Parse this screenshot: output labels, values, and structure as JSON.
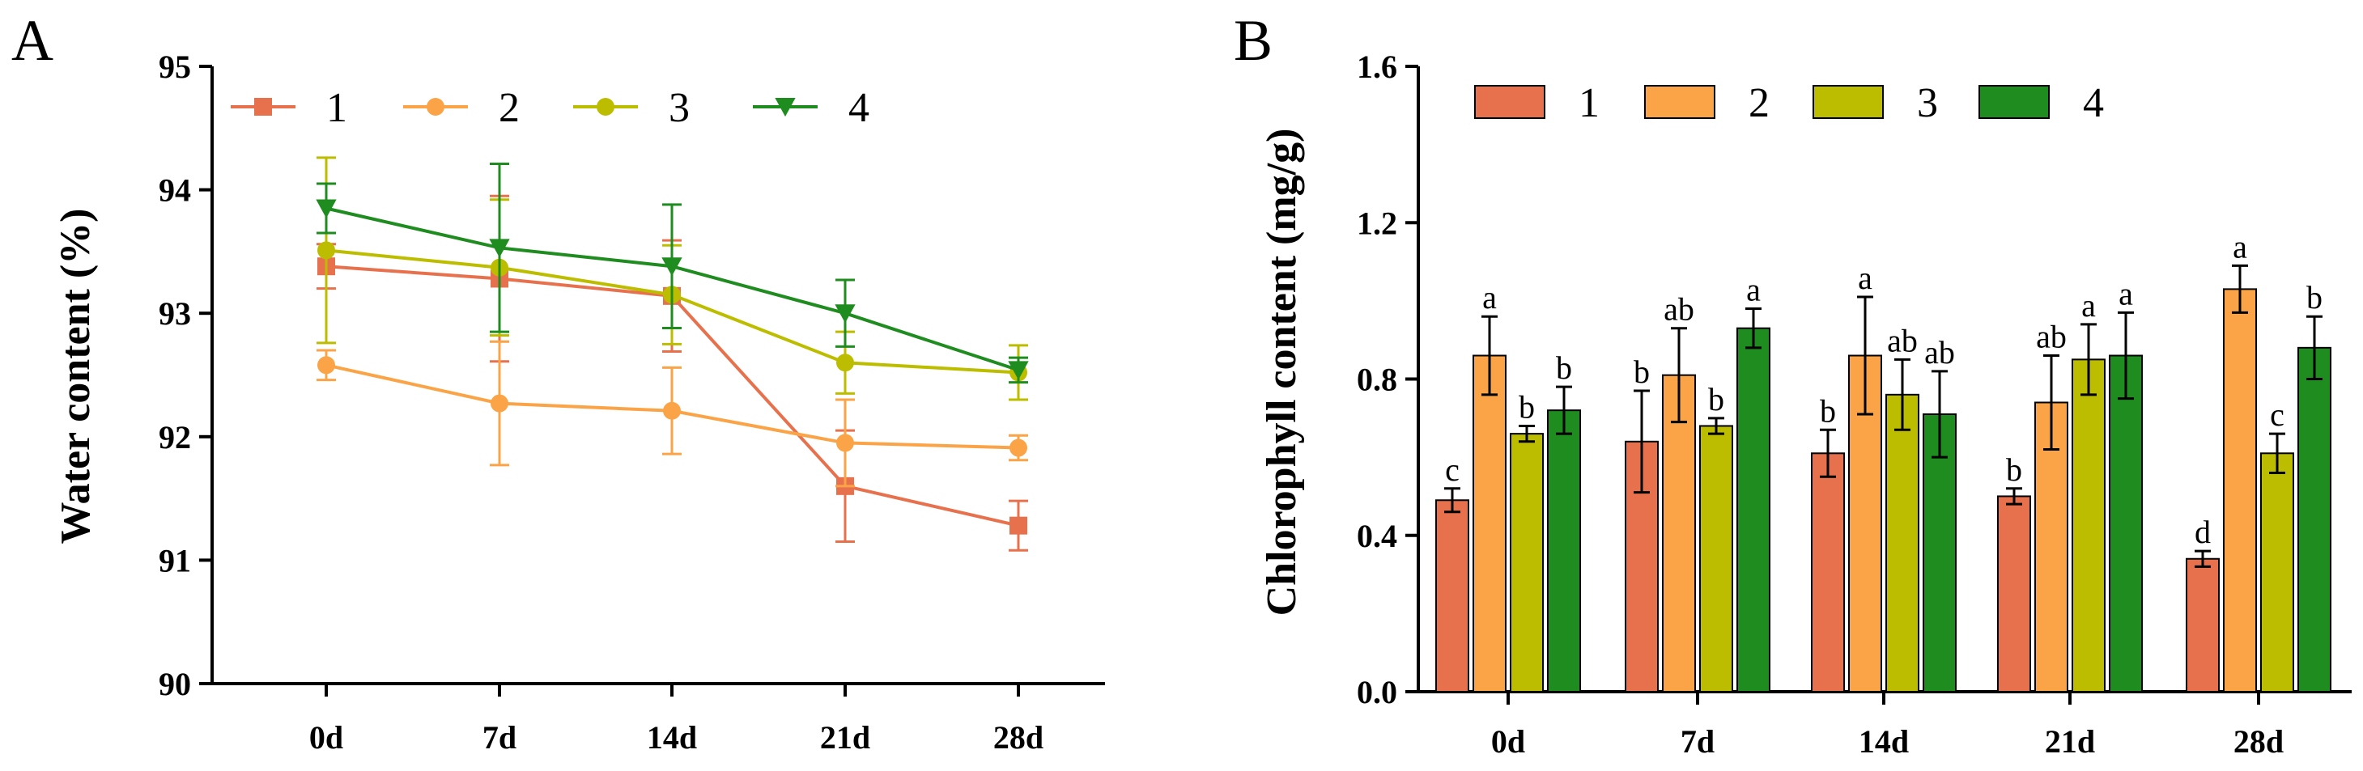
{
  "colors": {
    "s1": "#E8714D",
    "s2": "#FAA447",
    "s3": "#BDBD00",
    "s4": "#1E8C1E"
  },
  "chart_data": [
    {
      "panel": "A",
      "type": "line",
      "ylabel": "Water content (%)",
      "xlabel": "",
      "categories": [
        "0d",
        "7d",
        "14d",
        "21d",
        "28d"
      ],
      "ylim": [
        90,
        95
      ],
      "yticks": [
        "90",
        "91",
        "92",
        "93",
        "94",
        "95"
      ],
      "legend": "top-left",
      "series": [
        {
          "name": "1",
          "marker": "square",
          "color_key": "s1",
          "values": [
            93.38,
            93.28,
            93.14,
            91.6,
            91.28
          ],
          "errors": [
            0.18,
            0.67,
            0.45,
            0.45,
            0.2
          ]
        },
        {
          "name": "2",
          "marker": "circle",
          "color_key": "s2",
          "values": [
            92.58,
            92.27,
            92.21,
            91.95,
            91.91
          ],
          "errors": [
            0.12,
            0.5,
            0.35,
            0.35,
            0.1
          ]
        },
        {
          "name": "3",
          "marker": "circle",
          "color_key": "s3",
          "values": [
            93.51,
            93.37,
            93.15,
            92.6,
            92.52
          ],
          "errors": [
            0.75,
            0.55,
            0.4,
            0.25,
            0.22
          ]
        },
        {
          "name": "4",
          "marker": "triangle-down",
          "color_key": "s4",
          "values": [
            93.85,
            93.53,
            93.38,
            93.0,
            92.54
          ],
          "errors": [
            0.2,
            0.68,
            0.5,
            0.27,
            0.1
          ]
        }
      ]
    },
    {
      "panel": "B",
      "type": "bar",
      "ylabel": "Chlorophyll content (mg/g)",
      "xlabel": "",
      "categories": [
        "0d",
        "7d",
        "14d",
        "21d",
        "28d"
      ],
      "ylim": [
        0,
        1.6
      ],
      "yticks": [
        "0.0",
        "0.4",
        "0.8",
        "1.2",
        "1.6"
      ],
      "legend": "top",
      "series": [
        {
          "name": "1",
          "color_key": "s1",
          "values": [
            0.49,
            0.64,
            0.61,
            0.5,
            0.34
          ],
          "errors": [
            0.03,
            0.13,
            0.06,
            0.02,
            0.02
          ],
          "labels": [
            "c",
            "b",
            "b",
            "b",
            "d"
          ]
        },
        {
          "name": "2",
          "color_key": "s2",
          "values": [
            0.86,
            0.81,
            0.86,
            0.74,
            1.03
          ],
          "errors": [
            0.1,
            0.12,
            0.15,
            0.12,
            0.06
          ],
          "labels": [
            "a",
            "ab",
            "a",
            "ab",
            "a"
          ]
        },
        {
          "name": "3",
          "color_key": "s3",
          "values": [
            0.66,
            0.68,
            0.76,
            0.85,
            0.61
          ],
          "errors": [
            0.02,
            0.02,
            0.09,
            0.09,
            0.05
          ],
          "labels": [
            "b",
            "b",
            "ab",
            "a",
            "c"
          ]
        },
        {
          "name": "4",
          "color_key": "s4",
          "values": [
            0.72,
            0.93,
            0.71,
            0.86,
            0.88
          ],
          "errors": [
            0.06,
            0.05,
            0.11,
            0.11,
            0.08
          ],
          "labels": [
            "b",
            "a",
            "ab",
            "a",
            "b"
          ]
        }
      ]
    }
  ]
}
